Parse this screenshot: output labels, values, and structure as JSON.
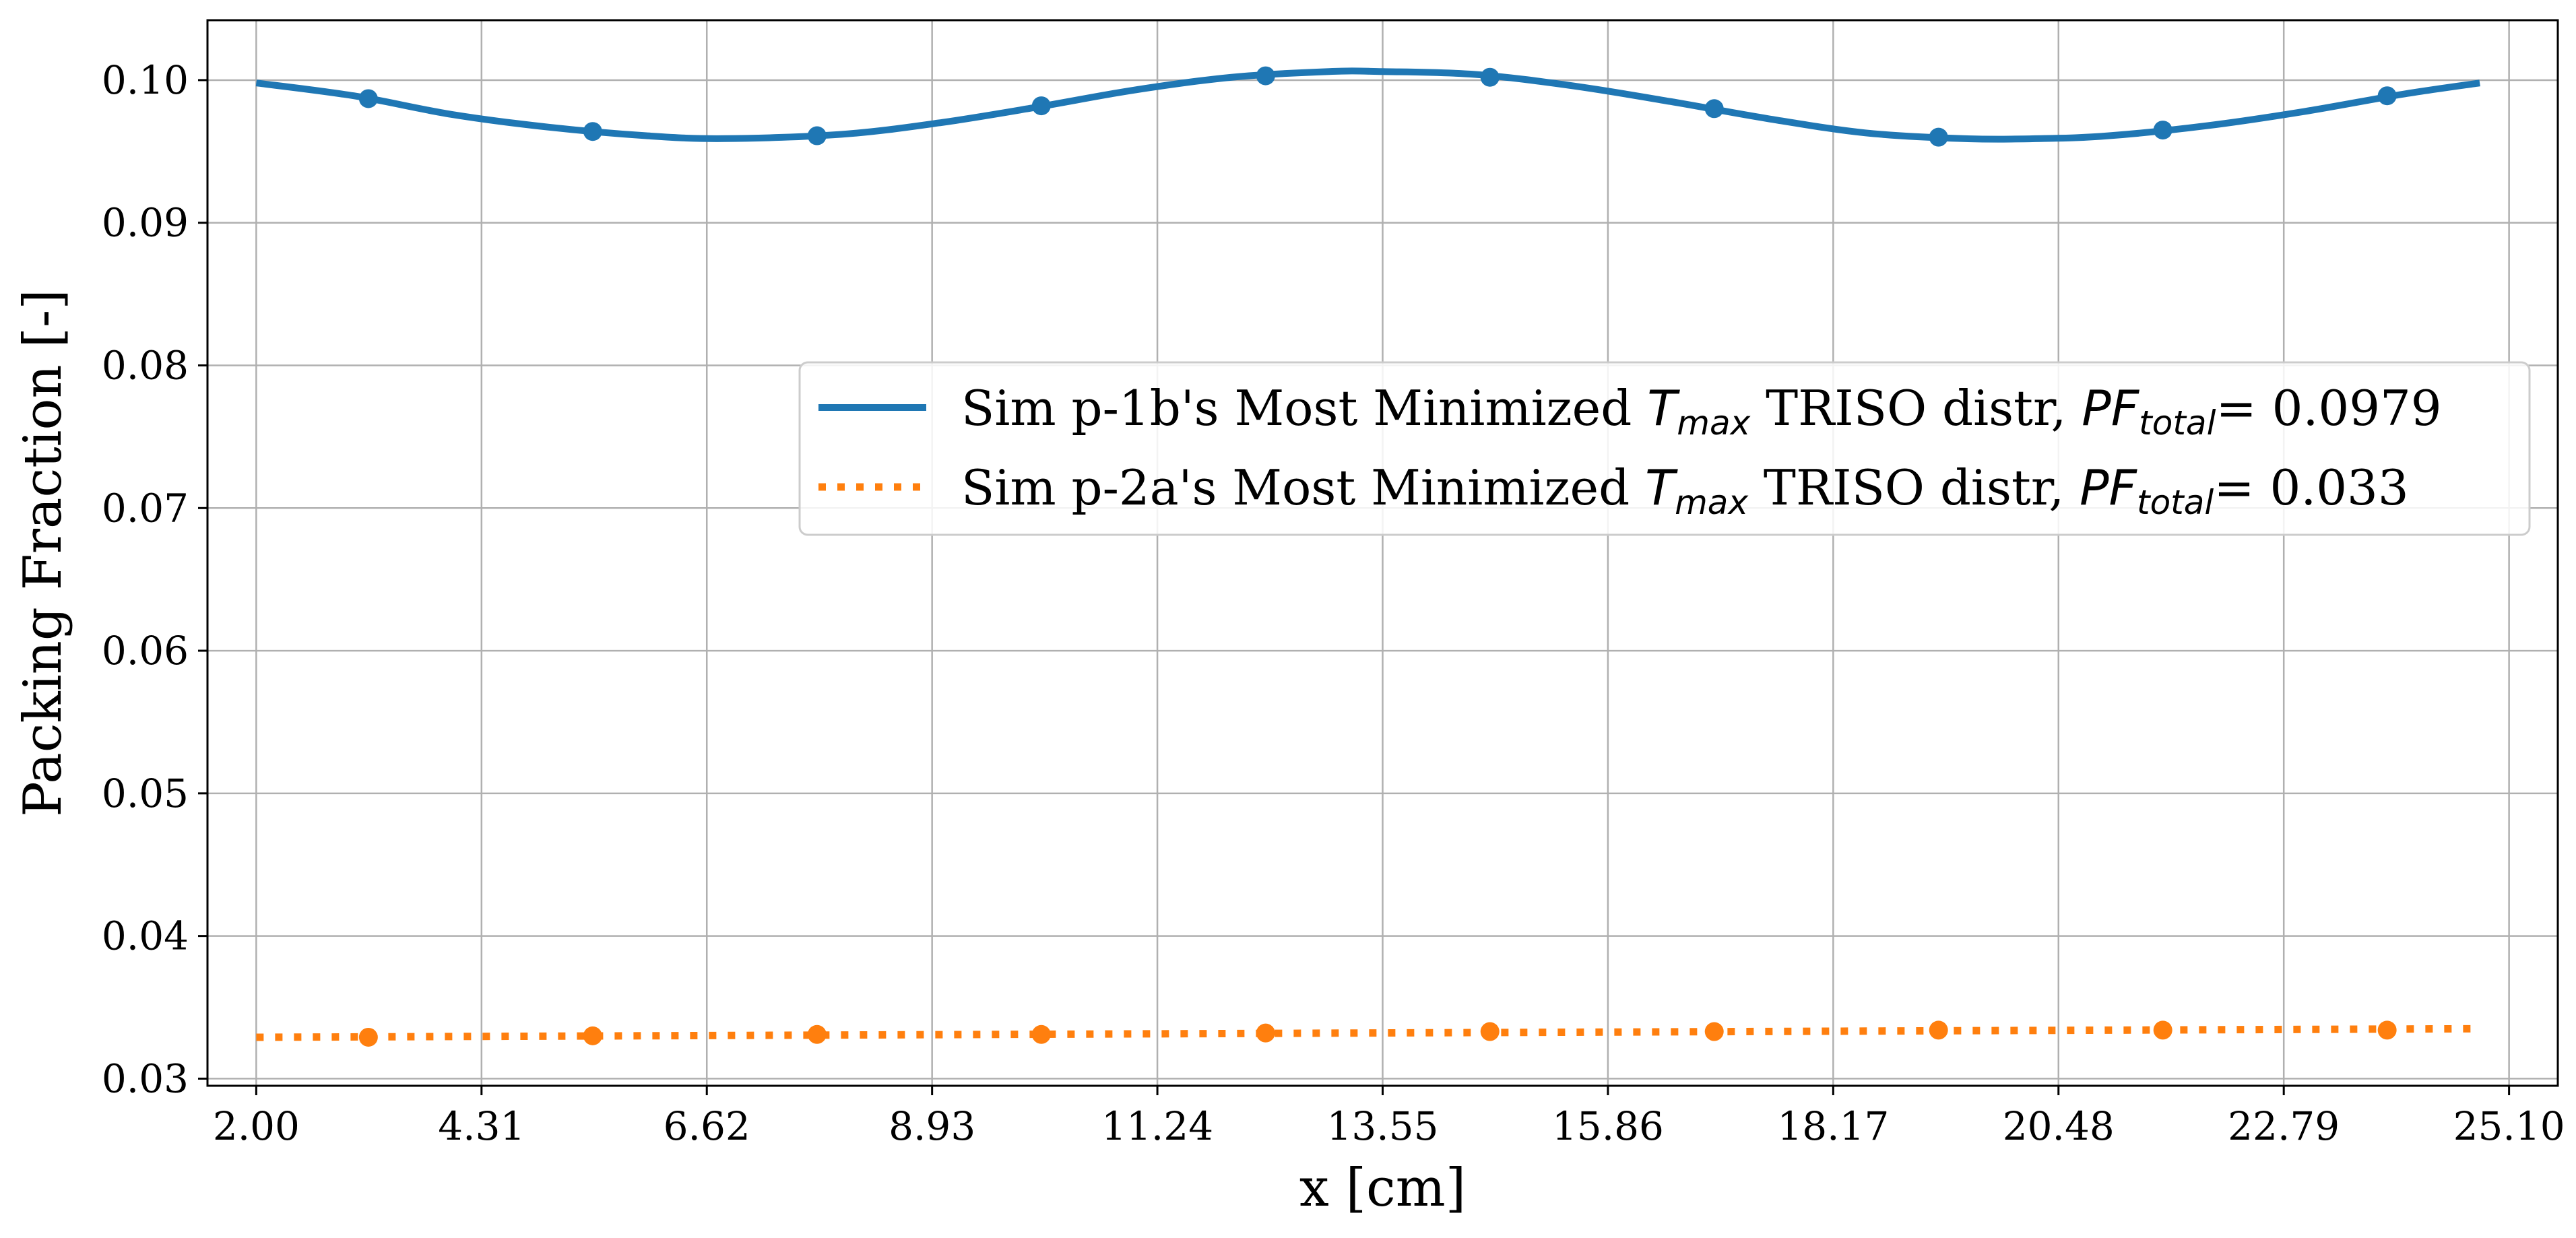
{
  "chart_data": {
    "type": "line",
    "xlabel": "x [cm]",
    "ylabel": "Packing Fraction [-]",
    "xlim": [
      1.5,
      25.6
    ],
    "ylim": [
      0.0295,
      0.1042
    ],
    "xticks": [
      2.0,
      4.31,
      6.62,
      8.93,
      11.24,
      13.55,
      15.86,
      18.17,
      20.48,
      22.79,
      25.1
    ],
    "xtick_labels": [
      "2.00",
      "4.31",
      "6.62",
      "8.93",
      "11.24",
      "13.55",
      "15.86",
      "18.17",
      "20.48",
      "22.79",
      "25.10"
    ],
    "yticks": [
      0.03,
      0.04,
      0.05,
      0.06,
      0.07,
      0.08,
      0.09,
      0.1
    ],
    "ytick_labels": [
      "0.03",
      "0.04",
      "0.05",
      "0.06",
      "0.07",
      "0.08",
      "0.09",
      "0.10"
    ],
    "grid": true,
    "legend_position": "center-right",
    "series": [
      {
        "name": "Sim p-1b's Most Minimized T_max TRISO distr, PF_total= 0.0979",
        "legend": {
          "pre": "Sim p-1b's Most Minimized ",
          "sym": "T",
          "sub1": "max",
          "mid": " TRISO distr, ",
          "sym2": "PF",
          "sub2": "total",
          "post": "= 0.0979"
        },
        "style": "solid",
        "color": "#1f77b4",
        "curve_x": [
          2.0,
          3.0,
          4.0,
          5.0,
          6.0,
          6.8,
          8.0,
          9.0,
          10.0,
          11.0,
          12.0,
          13.0,
          13.55,
          14.5,
          15.5,
          16.5,
          17.5,
          18.5,
          19.5,
          20.3,
          21.0,
          22.0,
          23.0,
          24.0,
          24.8
        ],
        "curve_y": [
          0.0998,
          0.0989,
          0.0976,
          0.0967,
          0.0961,
          0.0959,
          0.0962,
          0.097,
          0.0981,
          0.0993,
          0.1002,
          0.1006,
          0.1006,
          0.1004,
          0.0996,
          0.0985,
          0.0973,
          0.0963,
          0.0959,
          0.0959,
          0.0961,
          0.0968,
          0.0978,
          0.099,
          0.0998
        ],
        "marker_x": [
          3.15,
          5.45,
          7.75,
          10.05,
          12.35,
          14.65,
          16.95,
          19.25,
          21.55,
          23.85
        ],
        "marker_y": [
          0.0987,
          0.0964,
          0.0961,
          0.0982,
          0.1003,
          0.1002,
          0.098,
          0.096,
          0.0965,
          0.0989
        ]
      },
      {
        "name": "Sim p-2a's Most Minimized T_max TRISO distr, PF_total= 0.033",
        "legend": {
          "pre": "Sim p-2a's Most Minimized ",
          "sym": "T",
          "sub1": "max",
          "mid": " TRISO distr, ",
          "sym2": "PF",
          "sub2": "total",
          "post": "= 0.033"
        },
        "style": "dotted",
        "color": "#ff7f0e",
        "curve_x": [
          2.0,
          24.8
        ],
        "curve_y": [
          0.0329,
          0.0335
        ],
        "marker_x": [
          3.15,
          5.45,
          7.75,
          10.05,
          12.35,
          14.65,
          16.95,
          19.25,
          21.55,
          23.85
        ],
        "marker_y": [
          0.0329,
          0.033,
          0.0331,
          0.0331,
          0.0332,
          0.0333,
          0.0333,
          0.0334,
          0.0334,
          0.0334
        ]
      }
    ]
  }
}
